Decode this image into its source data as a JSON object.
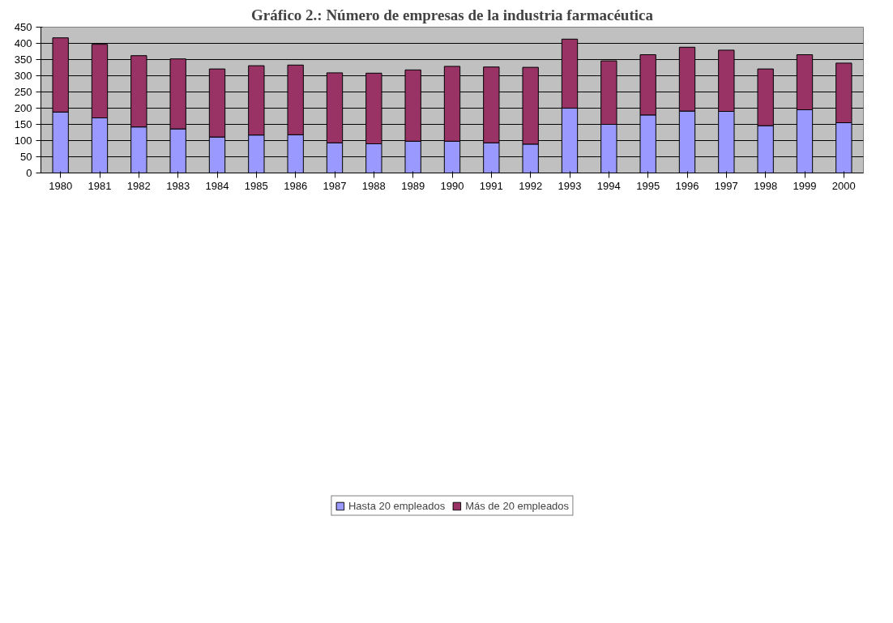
{
  "chart_data": {
    "type": "bar",
    "title": "Gráfico 2.: Número de empresas de la industria farmacéutica",
    "stacked": true,
    "categories": [
      "1980",
      "1981",
      "1982",
      "1983",
      "1984",
      "1985",
      "1986",
      "1987",
      "1988",
      "1989",
      "1990",
      "1991",
      "1992",
      "1993",
      "1994",
      "1995",
      "1996",
      "1997",
      "1998",
      "1999",
      "2000"
    ],
    "series": [
      {
        "name": "Hasta 20 empleados",
        "color": "#9999ff",
        "values": [
          188,
          170,
          142,
          136,
          111,
          117,
          118,
          93,
          90,
          98,
          98,
          93,
          89,
          200,
          150,
          179,
          191,
          190,
          146,
          195,
          155
        ]
      },
      {
        "name": "Más de 20 empleados",
        "color": "#993366",
        "values": [
          229,
          227,
          220,
          216,
          210,
          214,
          215,
          216,
          218,
          220,
          231,
          234,
          237,
          213,
          196,
          186,
          197,
          189,
          175,
          170,
          184
        ]
      }
    ],
    "ylim": [
      0,
      450
    ],
    "yticks": [
      0,
      50,
      100,
      150,
      200,
      250,
      300,
      350,
      400,
      450
    ],
    "grid": "y",
    "legend": "bottom"
  }
}
